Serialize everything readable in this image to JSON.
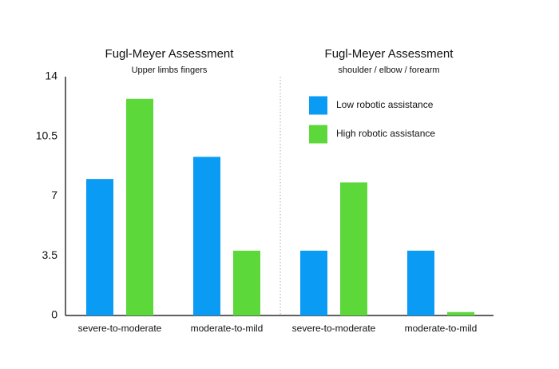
{
  "chart_data": {
    "type": "bar",
    "panels": [
      {
        "title": "Fugl-Meyer Assessment",
        "subtitle": "Upper limbs fingers",
        "categories": [
          0,
          1
        ]
      },
      {
        "title": "Fugl-Meyer Assessment",
        "subtitle": "shoulder / elbow / forearm",
        "categories": [
          2,
          3
        ]
      }
    ],
    "categories": [
      "severe-to-moderate",
      "moderate-to-mild",
      "severe-to-moderate",
      "moderate-to-mild"
    ],
    "series": [
      {
        "name": "Low robotic assistance",
        "color": "#0a9bf5",
        "values": [
          8.0,
          9.3,
          3.8,
          3.8
        ]
      },
      {
        "name": "High robotic assistance",
        "color": "#5cd83a",
        "values": [
          12.7,
          3.8,
          7.8,
          0.2
        ]
      }
    ],
    "ylim": [
      0,
      14
    ],
    "yticks": [
      0,
      3.5,
      7,
      10.5,
      14
    ]
  }
}
